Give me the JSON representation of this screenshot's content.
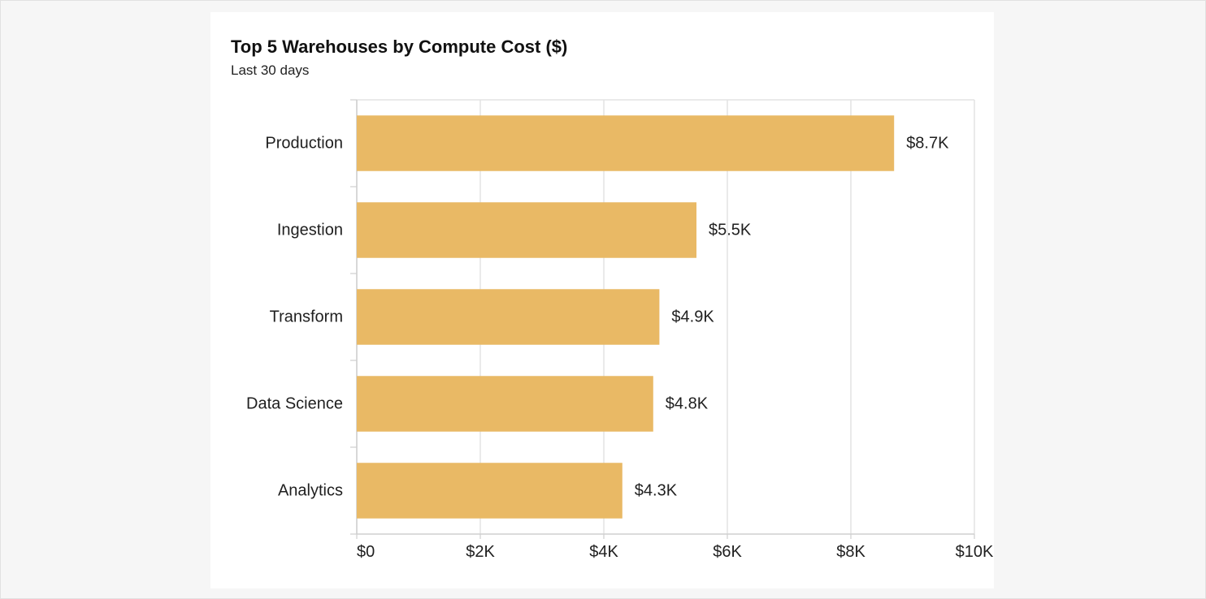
{
  "chart_data": {
    "type": "bar",
    "orientation": "horizontal",
    "title": "Top 5 Warehouses by Compute Cost ($)",
    "subtitle": "Last 30 days",
    "categories": [
      "Production",
      "Ingestion",
      "Transform",
      "Data Science",
      "Analytics"
    ],
    "values": [
      8700,
      5500,
      4900,
      4800,
      4300
    ],
    "data_labels": [
      "$8.7K",
      "$5.5K",
      "$4.9K",
      "$4.8K",
      "$4.3K"
    ],
    "xlim": [
      0,
      10000
    ],
    "x_ticks": [
      0,
      2000,
      4000,
      6000,
      8000,
      10000
    ],
    "x_tick_labels": [
      "$0",
      "$2K",
      "$4K",
      "$6K",
      "$8K",
      "$10K"
    ],
    "xlabel": "",
    "ylabel": "",
    "grid": true,
    "legend": "none",
    "bar_color": "#e9b965"
  }
}
